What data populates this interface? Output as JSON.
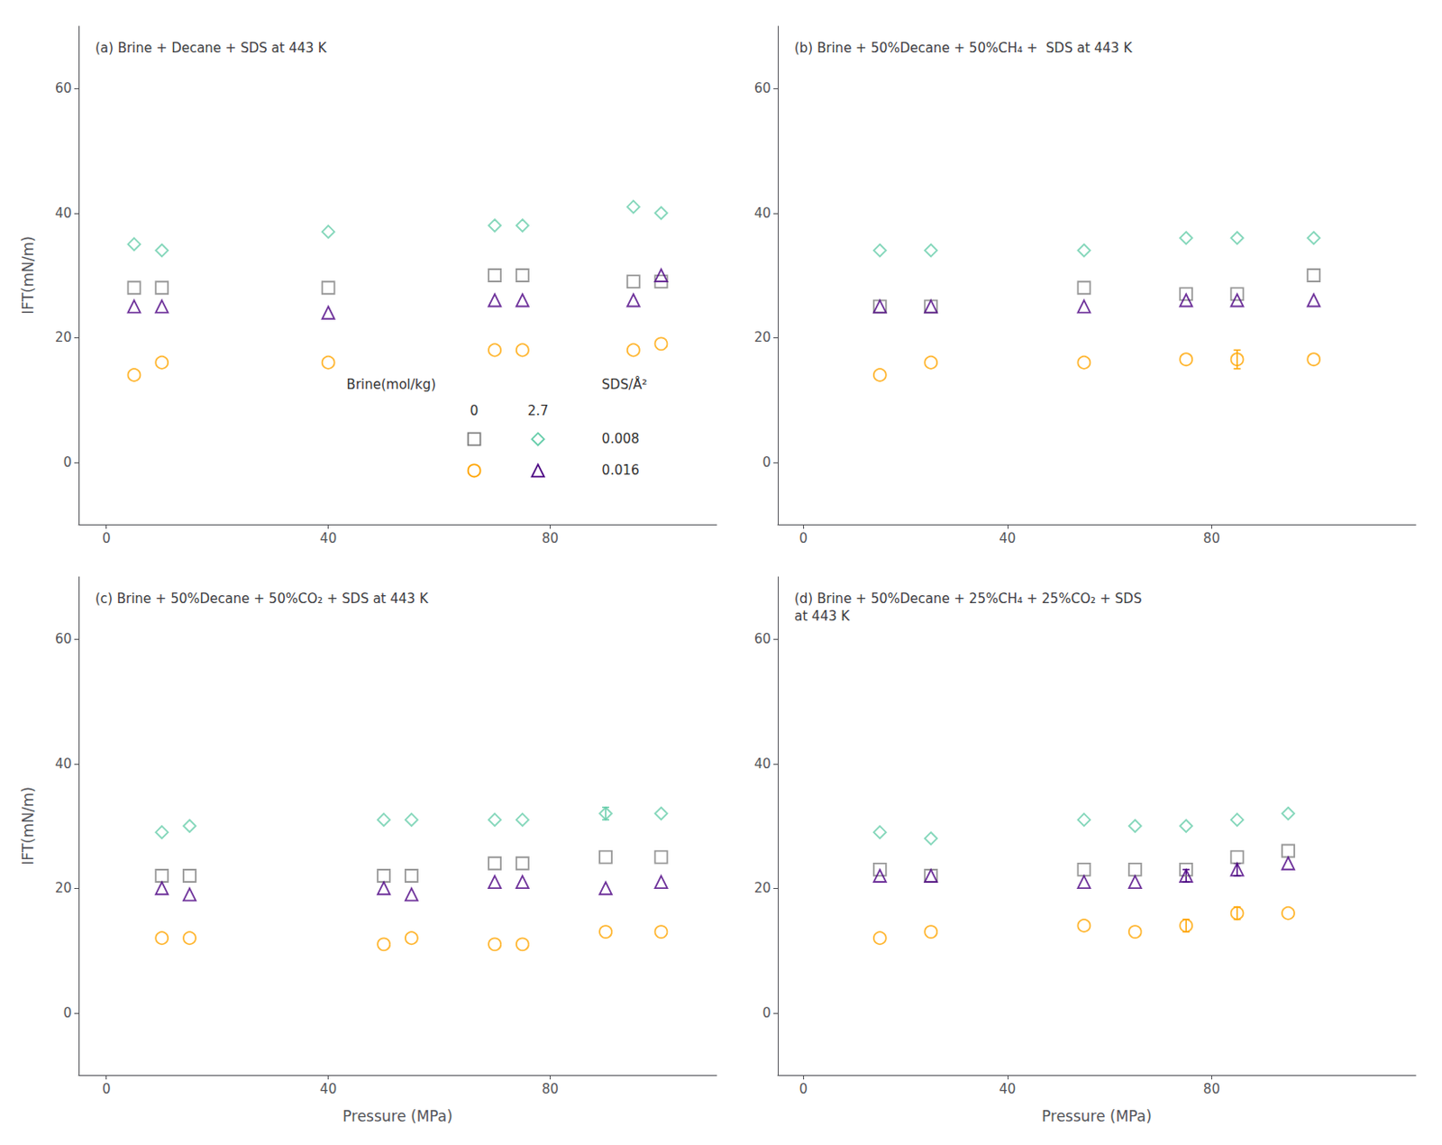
{
  "chart_data": [
    {
      "type": "scatter",
      "title": "(a) Brine + Decane + SDS at 443 K",
      "ylabel": "IFT(mN/m)",
      "xlim": [
        -5,
        110
      ],
      "xticks": [
        0,
        40,
        80
      ],
      "ylim": [
        -10,
        70
      ],
      "yticks": [
        0,
        20,
        40,
        60
      ],
      "grid": false,
      "annotations": {
        "brine": "Brine(mol/kg)",
        "sds": "SDS/Å²"
      },
      "series": [
        {
          "x": [
            5,
            10,
            40,
            70,
            75,
            95,
            100
          ],
          "y": [
            28,
            28,
            28,
            30,
            30,
            29,
            29
          ],
          "yerr": [
            null,
            null,
            null,
            null,
            null,
            null,
            null
          ],
          "marker": "square",
          "color": "#808080",
          "brine": "0",
          "sds": "0.008"
        },
        {
          "x": [
            5,
            10,
            40,
            70,
            75,
            95,
            100
          ],
          "y": [
            35,
            34,
            37,
            38,
            38,
            41,
            40
          ],
          "yerr": [
            null,
            null,
            null,
            null,
            null,
            null,
            null
          ],
          "marker": "diamond",
          "color": "#66CDAA",
          "brine": "2.7",
          "sds": "0.008"
        },
        {
          "x": [
            5,
            10,
            40,
            70,
            75,
            95,
            100
          ],
          "y": [
            14,
            16,
            16,
            18,
            18,
            18,
            19
          ],
          "yerr": [
            null,
            null,
            null,
            null,
            null,
            null,
            null
          ],
          "marker": "circle",
          "color": "#FFA500",
          "brine": "0",
          "sds": "0.016"
        },
        {
          "x": [
            5,
            10,
            40,
            70,
            75,
            95,
            100
          ],
          "y": [
            25,
            25,
            24,
            26,
            26,
            26,
            30
          ],
          "yerr": [
            null,
            null,
            null,
            null,
            null,
            null,
            null
          ],
          "marker": "triangle",
          "color": "#4B0082",
          "brine": "2.7",
          "sds": "0.016"
        }
      ]
    },
    {
      "type": "scatter",
      "title": "(b) Brine + 50%Decane + 50%CH₄ +  SDS at 443 K",
      "xlim": [
        -5,
        120
      ],
      "xticks": [
        0,
        40,
        80
      ],
      "ylim": [
        -10,
        70
      ],
      "yticks": [
        0,
        20,
        40,
        60
      ],
      "grid": false,
      "series": [
        {
          "x": [
            15,
            25,
            55,
            75,
            85,
            100
          ],
          "y": [
            25,
            25,
            28,
            27,
            27,
            30
          ],
          "yerr": [
            null,
            null,
            null,
            null,
            null,
            null
          ],
          "marker": "square",
          "color": "#808080"
        },
        {
          "x": [
            15,
            25,
            55,
            75,
            85,
            100
          ],
          "y": [
            34,
            34,
            34,
            36,
            36,
            36
          ],
          "yerr": [
            null,
            null,
            null,
            null,
            null,
            null
          ],
          "marker": "diamond",
          "color": "#66CDAA"
        },
        {
          "x": [
            15,
            25,
            55,
            75,
            85,
            100
          ],
          "y": [
            14,
            16,
            16,
            16.5,
            16.5,
            16.5
          ],
          "yerr": [
            null,
            null,
            null,
            null,
            1.5,
            null
          ],
          "marker": "circle",
          "color": "#FFA500"
        },
        {
          "x": [
            15,
            25,
            55,
            75,
            85,
            100
          ],
          "y": [
            25,
            25,
            25,
            26,
            26,
            26
          ],
          "yerr": [
            null,
            null,
            null,
            null,
            null,
            null
          ],
          "marker": "triangle",
          "color": "#4B0082"
        }
      ]
    },
    {
      "type": "scatter",
      "title": "(c) Brine + 50%Decane + 50%CO₂ + SDS at 443 K",
      "xlabel": "Pressure (MPa)",
      "ylabel": "IFT(mN/m)",
      "xlim": [
        -5,
        110
      ],
      "xticks": [
        0,
        40,
        80
      ],
      "ylim": [
        -10,
        70
      ],
      "yticks": [
        0,
        20,
        40,
        60
      ],
      "grid": false,
      "series": [
        {
          "x": [
            10,
            15,
            50,
            55,
            70,
            75,
            90,
            100
          ],
          "y": [
            22,
            22,
            22,
            22,
            24,
            24,
            25,
            25
          ],
          "yerr": [
            null,
            null,
            null,
            null,
            null,
            null,
            null,
            null
          ],
          "marker": "square",
          "color": "#808080"
        },
        {
          "x": [
            10,
            15,
            50,
            55,
            70,
            75,
            90,
            100
          ],
          "y": [
            29,
            30,
            31,
            31,
            31,
            31,
            32,
            32
          ],
          "yerr": [
            null,
            null,
            null,
            null,
            null,
            null,
            1.0,
            null
          ],
          "marker": "diamond",
          "color": "#66CDAA"
        },
        {
          "x": [
            10,
            15,
            50,
            55,
            70,
            75,
            90,
            100
          ],
          "y": [
            12,
            12,
            11,
            12,
            11,
            11,
            13,
            13
          ],
          "yerr": [
            null,
            null,
            null,
            null,
            null,
            null,
            null,
            null
          ],
          "marker": "circle",
          "color": "#FFA500"
        },
        {
          "x": [
            10,
            15,
            50,
            55,
            70,
            75,
            90,
            100
          ],
          "y": [
            20,
            19,
            20,
            19,
            21,
            21,
            20,
            21
          ],
          "yerr": [
            null,
            null,
            null,
            null,
            null,
            null,
            null,
            null
          ],
          "marker": "triangle",
          "color": "#4B0082"
        }
      ]
    },
    {
      "type": "scatter",
      "title": "(d) Brine + 50%Decane + 25%CH₄ + 25%CO₂ + SDS\nat 443 K",
      "xlabel": "Pressure (MPa)",
      "xlim": [
        -5,
        120
      ],
      "xticks": [
        0,
        40,
        80
      ],
      "ylim": [
        -10,
        70
      ],
      "yticks": [
        0,
        20,
        40,
        60
      ],
      "grid": false,
      "series": [
        {
          "x": [
            15,
            25,
            55,
            65,
            75,
            85,
            95
          ],
          "y": [
            23,
            22,
            23,
            23,
            23,
            25,
            26
          ],
          "yerr": [
            null,
            null,
            null,
            null,
            null,
            null,
            null
          ],
          "marker": "square",
          "color": "#808080"
        },
        {
          "x": [
            15,
            25,
            55,
            65,
            75,
            85,
            95
          ],
          "y": [
            29,
            28,
            31,
            30,
            30,
            31,
            32
          ],
          "yerr": [
            null,
            null,
            null,
            null,
            null,
            null,
            null
          ],
          "marker": "diamond",
          "color": "#66CDAA"
        },
        {
          "x": [
            15,
            25,
            55,
            65,
            75,
            85,
            95
          ],
          "y": [
            12,
            13,
            14,
            13,
            14,
            16,
            16
          ],
          "yerr": [
            null,
            null,
            null,
            null,
            1.0,
            1.0,
            null
          ],
          "marker": "circle",
          "color": "#FFA500"
        },
        {
          "x": [
            15,
            25,
            55,
            65,
            75,
            85,
            95
          ],
          "y": [
            22,
            22,
            21,
            21,
            22,
            23,
            24
          ],
          "yerr": [
            null,
            null,
            null,
            null,
            1.0,
            1.0,
            null
          ],
          "marker": "triangle",
          "color": "#4B0082"
        }
      ]
    }
  ]
}
